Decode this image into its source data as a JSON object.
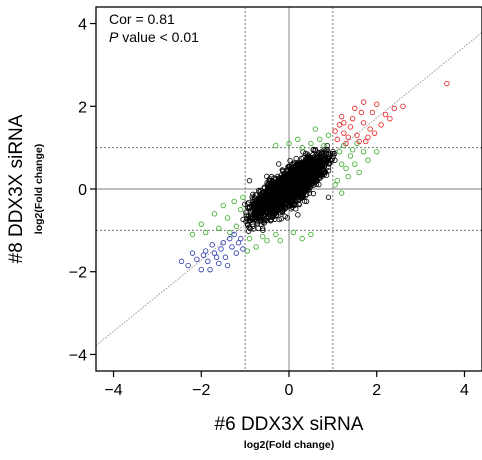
{
  "chart_data": {
    "type": "scatter",
    "title": "",
    "xlabel": "#6 DDX3X siRNA",
    "xlabel_sub": "log2(Fold change)",
    "ylabel": "#8 DDX3X siRNA",
    "ylabel_sub": "log2(Fold change)",
    "xlim": [
      -4.4,
      4.4
    ],
    "ylim": [
      -4.4,
      4.4
    ],
    "xticks": [
      -4,
      -2,
      0,
      2,
      4
    ],
    "yticks": [
      -4,
      -2,
      0,
      2,
      4
    ],
    "xtick_labels": [
      "−4",
      "−2",
      "0",
      "2",
      "4"
    ],
    "ytick_labels": [
      "−4",
      "−2",
      "0",
      "2",
      "4"
    ],
    "grid": false,
    "annotation": {
      "line1": "Cor = 0.81",
      "line2_italic": "P",
      "line2_rest": " value < 0.01"
    },
    "reference_lines": {
      "zero_x": 0,
      "zero_y": 0,
      "threshold_x": [
        -1,
        1
      ],
      "threshold_y": [
        -1,
        1
      ],
      "fit_slope": 0.86,
      "fit_intercept": 0.55
    },
    "series": [
      {
        "color": "#e41a1c",
        "marker": "open-circle",
        "points": [
          [
            1.1,
            1.2
          ],
          [
            1.25,
            1.35
          ],
          [
            1.4,
            1.5
          ],
          [
            1.55,
            1.3
          ],
          [
            1.7,
            1.6
          ],
          [
            1.85,
            1.45
          ],
          [
            1.2,
            1.75
          ],
          [
            1.5,
            1.95
          ],
          [
            1.9,
            1.85
          ],
          [
            2.1,
            1.55
          ],
          [
            2.0,
            2.05
          ],
          [
            1.3,
            1.1
          ],
          [
            1.6,
            1.15
          ],
          [
            1.8,
            1.25
          ],
          [
            2.3,
            1.7
          ],
          [
            1.15,
            1.55
          ],
          [
            1.45,
            1.7
          ],
          [
            1.7,
            2.1
          ],
          [
            2.4,
            1.95
          ],
          [
            2.6,
            2.0
          ],
          [
            3.6,
            2.55
          ],
          [
            1.05,
            1.4
          ],
          [
            1.35,
            1.25
          ],
          [
            1.95,
            1.35
          ],
          [
            2.2,
            1.8
          ],
          [
            1.65,
            1.85
          ],
          [
            1.25,
            1.6
          ],
          [
            1.75,
            1.15
          ]
        ]
      },
      {
        "color": "#2233aa",
        "marker": "open-circle",
        "points": [
          [
            -1.1,
            -1.2
          ],
          [
            -1.3,
            -1.4
          ],
          [
            -1.5,
            -1.3
          ],
          [
            -1.7,
            -1.55
          ],
          [
            -1.9,
            -1.5
          ],
          [
            -2.1,
            -1.7
          ],
          [
            -1.2,
            -1.55
          ],
          [
            -1.45,
            -1.65
          ],
          [
            -1.6,
            -1.8
          ],
          [
            -1.85,
            -1.75
          ],
          [
            -2.0,
            -1.95
          ],
          [
            -2.3,
            -1.85
          ],
          [
            -1.15,
            -1.3
          ],
          [
            -1.35,
            -1.2
          ],
          [
            -1.55,
            -1.45
          ],
          [
            -1.75,
            -1.35
          ],
          [
            -1.95,
            -1.6
          ],
          [
            -2.2,
            -1.55
          ],
          [
            -1.05,
            -1.45
          ],
          [
            -1.4,
            -1.85
          ],
          [
            -1.65,
            -1.65
          ],
          [
            -2.45,
            -1.75
          ],
          [
            -1.25,
            -1.1
          ],
          [
            -1.8,
            -1.95
          ]
        ]
      },
      {
        "color": "#33aa22",
        "marker": "open-circle",
        "points": [
          [
            -0.9,
            -1.2
          ],
          [
            -0.6,
            -1.15
          ],
          [
            -0.3,
            -1.1
          ],
          [
            -0.75,
            -1.4
          ],
          [
            -1.4,
            -0.7
          ],
          [
            -1.2,
            -0.9
          ],
          [
            -1.1,
            -0.5
          ],
          [
            -1.6,
            -0.95
          ],
          [
            -0.95,
            -1.5
          ],
          [
            0.1,
            -1.05
          ],
          [
            0.5,
            -1.1
          ],
          [
            -2.2,
            -1.1
          ],
          [
            -1.9,
            -1.05
          ],
          [
            -2.0,
            -0.85
          ],
          [
            -1.5,
            -0.4
          ],
          [
            -1.25,
            -0.3
          ],
          [
            1.1,
            0.2
          ],
          [
            1.2,
            0.6
          ],
          [
            1.4,
            0.8
          ],
          [
            1.6,
            0.4
          ],
          [
            1.8,
            0.7
          ],
          [
            1.15,
            0.9
          ],
          [
            1.35,
            0.3
          ],
          [
            1.55,
            1.1
          ],
          [
            1.25,
            1.05
          ],
          [
            0.8,
            1.05
          ],
          [
            0.5,
            1.1
          ],
          [
            0.2,
            1.2
          ],
          [
            0.6,
            1.45
          ],
          [
            0.3,
            1.0
          ],
          [
            0.9,
            1.3
          ],
          [
            1.05,
            0.1
          ],
          [
            1.2,
            -0.1
          ],
          [
            1.7,
            0.9
          ],
          [
            2.0,
            0.9
          ],
          [
            -0.3,
            1.05
          ],
          [
            0.0,
            1.1
          ],
          [
            1.3,
            0.5
          ],
          [
            -1.05,
            -0.2
          ],
          [
            -1.7,
            -0.6
          ],
          [
            -0.2,
            -1.25
          ],
          [
            0.3,
            -1.2
          ],
          [
            1.5,
            0.6
          ],
          [
            1.45,
            0.95
          ],
          [
            -1.35,
            -1.05
          ],
          [
            0.7,
            1.2
          ],
          [
            -0.5,
            -1.25
          ]
        ]
      },
      {
        "color": "#000000",
        "marker": "open-circle",
        "cloud": {
          "count": 2600,
          "center": [
            0.0,
            0.05
          ],
          "major_sd": 0.5,
          "minor_sd": 0.16,
          "angle_deg": 40.6
        },
        "points": [
          [
            -0.95,
            -0.85
          ],
          [
            -0.7,
            -0.95
          ],
          [
            0.8,
            0.85
          ],
          [
            0.95,
            0.7
          ],
          [
            0.4,
            -0.3
          ],
          [
            -0.4,
            0.3
          ],
          [
            0.9,
            -0.2
          ],
          [
            -0.9,
            0.2
          ],
          [
            0.6,
            0.95
          ],
          [
            -0.6,
            -0.95
          ]
        ]
      }
    ]
  }
}
